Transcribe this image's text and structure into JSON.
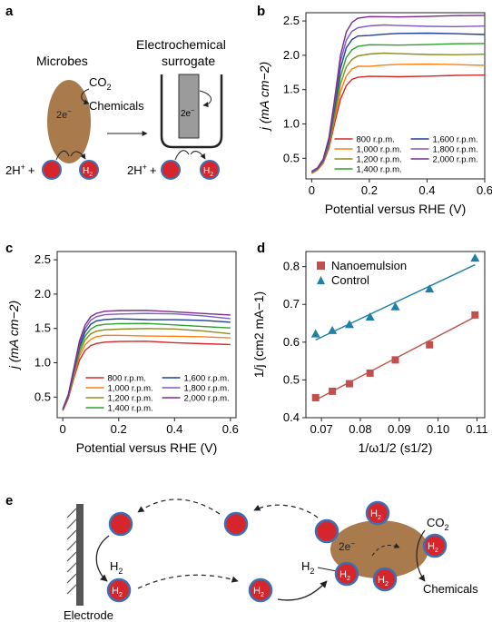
{
  "panel_a": {
    "label": "a",
    "microbes_label": "Microbes",
    "co2": "CO",
    "co2_sub": "2",
    "chemicals": "Chemicals",
    "electron": "2e",
    "electron_sup": "−",
    "surrogate_line1": "Electrochemical",
    "surrogate_line2": "surrogate",
    "proton": "2H",
    "proton_sup": "+",
    "plus": "+",
    "h2": "H",
    "h2_sub": "2"
  },
  "panel_e": {
    "label": "e",
    "electrode": "Electrode",
    "co2": "CO",
    "co2_sub": "2",
    "chemicals": "Chemicals",
    "electron": "2e",
    "electron_sup": "−",
    "h2": "H",
    "h2_sub": "2"
  },
  "colors": {
    "red_ball": "#d7262b",
    "ball_ring": "#3b6fb6",
    "microbe": "#a97b4c",
    "electrode": "#555555"
  },
  "chart_data": [
    {
      "panel": "b",
      "type": "line",
      "xlabel": "Potential versus RHE (V)",
      "ylabel": "j (mA cm−2)",
      "xlim": [
        -0.02,
        0.6
      ],
      "ylim": [
        0.2,
        2.62
      ],
      "xticks": [
        0,
        0.2,
        0.4,
        0.6
      ],
      "xtick_labels": [
        "0",
        "0.2",
        "0.4",
        "0.6"
      ],
      "yticks": [
        0.5,
        1.0,
        1.5,
        2.0,
        2.5
      ],
      "ytick_labels": [
        "0.5",
        "1.0",
        "1.5",
        "2.0",
        "2.5"
      ],
      "legend_position": "bottom-right",
      "series": [
        {
          "name": "800 r.p.m.",
          "color": "#d62728",
          "values": [
            0.28,
            0.33,
            0.43,
            0.65,
            1.02,
            1.36,
            1.56,
            1.65,
            1.68,
            1.69,
            1.7,
            1.7,
            1.7,
            1.7,
            1.7
          ]
        },
        {
          "name": "1,000 r.p.m.",
          "color": "#ff7f0e",
          "values": [
            0.28,
            0.33,
            0.44,
            0.68,
            1.08,
            1.47,
            1.7,
            1.8,
            1.84,
            1.85,
            1.86,
            1.86,
            1.86,
            1.86,
            1.86
          ]
        },
        {
          "name": "1,200 r.p.m.",
          "color": "#8c8c1e",
          "values": [
            0.29,
            0.34,
            0.45,
            0.7,
            1.14,
            1.58,
            1.83,
            1.94,
            1.99,
            2.01,
            2.02,
            2.02,
            2.02,
            2.02,
            2.02
          ]
        },
        {
          "name": "1,400 r.p.m.",
          "color": "#2ca02c",
          "values": [
            0.29,
            0.34,
            0.46,
            0.72,
            1.2,
            1.69,
            1.97,
            2.08,
            2.13,
            2.15,
            2.16,
            2.16,
            2.16,
            2.16,
            2.16
          ]
        },
        {
          "name": "1,600 r.p.m.",
          "color": "#1f3f99",
          "values": [
            0.3,
            0.35,
            0.47,
            0.75,
            1.26,
            1.81,
            2.11,
            2.23,
            2.28,
            2.3,
            2.31,
            2.31,
            2.31,
            2.31,
            2.31
          ]
        },
        {
          "name": "1,800 r.p.m.",
          "color": "#7b5cc4",
          "values": [
            0.3,
            0.35,
            0.48,
            0.77,
            1.32,
            1.91,
            2.22,
            2.35,
            2.4,
            2.42,
            2.43,
            2.43,
            2.43,
            2.43,
            2.43
          ]
        },
        {
          "name": "2,000 r.p.m.",
          "color": "#7b2a8c",
          "values": [
            0.31,
            0.36,
            0.49,
            0.8,
            1.38,
            2.0,
            2.34,
            2.48,
            2.54,
            2.56,
            2.57,
            2.57,
            2.57,
            2.57,
            2.57
          ]
        }
      ],
      "x": [
        0.0,
        0.02,
        0.04,
        0.06,
        0.08,
        0.1,
        0.12,
        0.14,
        0.16,
        0.2,
        0.25,
        0.3,
        0.4,
        0.5,
        0.6
      ]
    },
    {
      "panel": "c",
      "type": "line",
      "xlabel": "Potential versus RHE (V)",
      "ylabel": "j (mA cm−2)",
      "xlim": [
        -0.02,
        0.62
      ],
      "ylim": [
        0.2,
        2.62
      ],
      "xticks": [
        0,
        0.2,
        0.4,
        0.6
      ],
      "xtick_labels": [
        "0",
        "0.2",
        "0.4",
        "0.6"
      ],
      "yticks": [
        0.5,
        1.0,
        1.5,
        2.0,
        2.5
      ],
      "ytick_labels": [
        "0.5",
        "1.0",
        "1.5",
        "2.0",
        "2.5"
      ],
      "legend_position": "bottom-right",
      "series": [
        {
          "name": "800 r.p.m.",
          "color": "#d62728",
          "values": [
            0.3,
            0.48,
            0.78,
            1.04,
            1.18,
            1.25,
            1.28,
            1.3,
            1.31,
            1.31,
            1.3,
            1.29,
            1.27
          ]
        },
        {
          "name": "1,000 r.p.m.",
          "color": "#ff7f0e",
          "values": [
            0.3,
            0.49,
            0.81,
            1.1,
            1.26,
            1.34,
            1.38,
            1.4,
            1.4,
            1.4,
            1.39,
            1.37,
            1.35
          ]
        },
        {
          "name": "1,200 r.p.m.",
          "color": "#8c8c1e",
          "values": [
            0.31,
            0.5,
            0.84,
            1.15,
            1.33,
            1.42,
            1.46,
            1.48,
            1.49,
            1.49,
            1.48,
            1.46,
            1.43
          ]
        },
        {
          "name": "1,400 r.p.m.",
          "color": "#2ca02c",
          "values": [
            0.31,
            0.51,
            0.87,
            1.2,
            1.39,
            1.49,
            1.54,
            1.56,
            1.57,
            1.57,
            1.56,
            1.54,
            1.51
          ]
        },
        {
          "name": "1,600 r.p.m.",
          "color": "#1f3f99",
          "values": [
            0.32,
            0.52,
            0.89,
            1.24,
            1.45,
            1.56,
            1.61,
            1.63,
            1.64,
            1.64,
            1.63,
            1.61,
            1.58
          ]
        },
        {
          "name": "1,800 r.p.m.",
          "color": "#7b5cc4",
          "values": [
            0.32,
            0.53,
            0.91,
            1.28,
            1.5,
            1.62,
            1.67,
            1.7,
            1.71,
            1.71,
            1.7,
            1.68,
            1.65
          ]
        },
        {
          "name": "2,000 r.p.m.",
          "color": "#7b2a8c",
          "values": [
            0.33,
            0.54,
            0.93,
            1.32,
            1.55,
            1.67,
            1.72,
            1.75,
            1.76,
            1.76,
            1.75,
            1.73,
            1.7
          ]
        }
      ],
      "x": [
        0.0,
        0.02,
        0.04,
        0.06,
        0.08,
        0.1,
        0.12,
        0.15,
        0.2,
        0.3,
        0.4,
        0.5,
        0.6
      ]
    },
    {
      "panel": "d",
      "type": "scatter",
      "xlabel": "1/ω1/2 (s1/2)",
      "ylabel": "1/j (cm2 mA−1)",
      "xlim": [
        0.066,
        0.112
      ],
      "ylim": [
        0.4,
        0.84
      ],
      "xticks": [
        0.07,
        0.08,
        0.09,
        0.1,
        0.11
      ],
      "xtick_labels": [
        "0.07",
        "0.08",
        "0.09",
        "0.10",
        "0.11"
      ],
      "yticks": [
        0.4,
        0.5,
        0.6,
        0.7,
        0.8
      ],
      "ytick_labels": [
        "0.4",
        "0.5",
        "0.6",
        "0.7",
        "0.8"
      ],
      "legend_position": "top-left",
      "x": [
        0.0685,
        0.0728,
        0.0772,
        0.0825,
        0.089,
        0.0978,
        0.1095
      ],
      "series": [
        {
          "name": "Nanoemulsion",
          "color": "#c0504d",
          "marker": "square",
          "values": [
            0.453,
            0.47,
            0.49,
            0.518,
            0.553,
            0.593,
            0.672
          ],
          "fit": [
            0.0685,
            0.447,
            0.1095,
            0.667
          ]
        },
        {
          "name": "Control",
          "color": "#1f7fa6",
          "marker": "triangle",
          "values": [
            0.622,
            0.631,
            0.647,
            0.667,
            0.694,
            0.741,
            0.823
          ],
          "fit": [
            0.0685,
            0.606,
            0.1095,
            0.805
          ]
        }
      ]
    }
  ]
}
